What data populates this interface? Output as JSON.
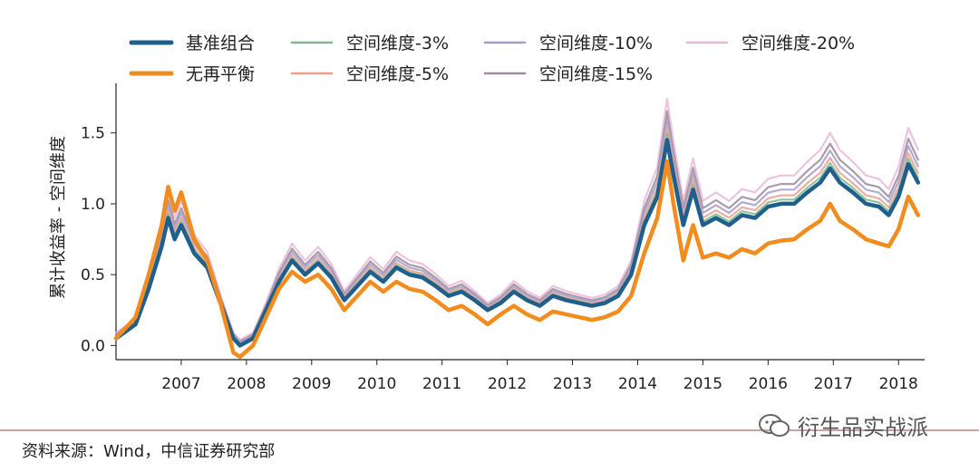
{
  "chart_data": {
    "type": "line",
    "title": "",
    "xlabel": "",
    "ylabel": "累计收益率 - 空间维度",
    "ylim": [
      -0.1,
      1.85
    ],
    "xlim": [
      2006.0,
      2018.4
    ],
    "x_ticks": [
      "2007",
      "2008",
      "2009",
      "2010",
      "2011",
      "2012",
      "2013",
      "2014",
      "2015",
      "2016",
      "2017",
      "2018"
    ],
    "y_ticks": [
      "0.0",
      "0.5",
      "1.0",
      "1.5"
    ],
    "grid": false,
    "legend_position": "top",
    "series": [
      {
        "name": "基准组合",
        "color": "#1f5f8b",
        "points": [
          [
            2006.0,
            0.05
          ],
          [
            2006.3,
            0.15
          ],
          [
            2006.5,
            0.4
          ],
          [
            2006.7,
            0.7
          ],
          [
            2006.8,
            0.9
          ],
          [
            2006.9,
            0.75
          ],
          [
            2007.0,
            0.85
          ],
          [
            2007.2,
            0.65
          ],
          [
            2007.4,
            0.55
          ],
          [
            2007.6,
            0.3
          ],
          [
            2007.8,
            0.05
          ],
          [
            2007.9,
            0.0
          ],
          [
            2008.1,
            0.05
          ],
          [
            2008.3,
            0.25
          ],
          [
            2008.5,
            0.45
          ],
          [
            2008.7,
            0.6
          ],
          [
            2008.9,
            0.5
          ],
          [
            2009.1,
            0.58
          ],
          [
            2009.3,
            0.48
          ],
          [
            2009.5,
            0.32
          ],
          [
            2009.7,
            0.42
          ],
          [
            2009.9,
            0.52
          ],
          [
            2010.1,
            0.45
          ],
          [
            2010.3,
            0.55
          ],
          [
            2010.5,
            0.5
          ],
          [
            2010.7,
            0.48
          ],
          [
            2010.9,
            0.42
          ],
          [
            2011.1,
            0.35
          ],
          [
            2011.3,
            0.38
          ],
          [
            2011.5,
            0.32
          ],
          [
            2011.7,
            0.25
          ],
          [
            2011.9,
            0.3
          ],
          [
            2012.1,
            0.38
          ],
          [
            2012.3,
            0.32
          ],
          [
            2012.5,
            0.28
          ],
          [
            2012.7,
            0.35
          ],
          [
            2012.9,
            0.32
          ],
          [
            2013.1,
            0.3
          ],
          [
            2013.3,
            0.28
          ],
          [
            2013.5,
            0.3
          ],
          [
            2013.7,
            0.35
          ],
          [
            2013.9,
            0.5
          ],
          [
            2014.1,
            0.85
          ],
          [
            2014.3,
            1.05
          ],
          [
            2014.45,
            1.45
          ],
          [
            2014.55,
            1.2
          ],
          [
            2014.7,
            0.85
          ],
          [
            2014.85,
            1.1
          ],
          [
            2015.0,
            0.85
          ],
          [
            2015.2,
            0.9
          ],
          [
            2015.4,
            0.85
          ],
          [
            2015.6,
            0.92
          ],
          [
            2015.8,
            0.9
          ],
          [
            2016.0,
            0.98
          ],
          [
            2016.2,
            1.0
          ],
          [
            2016.4,
            1.0
          ],
          [
            2016.6,
            1.08
          ],
          [
            2016.8,
            1.15
          ],
          [
            2016.95,
            1.25
          ],
          [
            2017.1,
            1.15
          ],
          [
            2017.3,
            1.08
          ],
          [
            2017.5,
            1.0
          ],
          [
            2017.7,
            0.98
          ],
          [
            2017.85,
            0.92
          ],
          [
            2018.0,
            1.05
          ],
          [
            2018.15,
            1.28
          ],
          [
            2018.3,
            1.15
          ]
        ]
      },
      {
        "name": "无再平衡",
        "color": "#f28c1e",
        "points": [
          [
            2006.0,
            0.05
          ],
          [
            2006.3,
            0.2
          ],
          [
            2006.5,
            0.5
          ],
          [
            2006.7,
            0.85
          ],
          [
            2006.8,
            1.12
          ],
          [
            2006.9,
            0.95
          ],
          [
            2007.0,
            1.08
          ],
          [
            2007.2,
            0.75
          ],
          [
            2007.4,
            0.6
          ],
          [
            2007.6,
            0.3
          ],
          [
            2007.8,
            -0.05
          ],
          [
            2007.9,
            -0.08
          ],
          [
            2008.1,
            0.0
          ],
          [
            2008.3,
            0.2
          ],
          [
            2008.5,
            0.4
          ],
          [
            2008.7,
            0.52
          ],
          [
            2008.9,
            0.45
          ],
          [
            2009.1,
            0.5
          ],
          [
            2009.3,
            0.4
          ],
          [
            2009.5,
            0.25
          ],
          [
            2009.7,
            0.35
          ],
          [
            2009.9,
            0.45
          ],
          [
            2010.1,
            0.38
          ],
          [
            2010.3,
            0.45
          ],
          [
            2010.5,
            0.4
          ],
          [
            2010.7,
            0.38
          ],
          [
            2010.9,
            0.32
          ],
          [
            2011.1,
            0.25
          ],
          [
            2011.3,
            0.28
          ],
          [
            2011.5,
            0.22
          ],
          [
            2011.7,
            0.15
          ],
          [
            2011.9,
            0.22
          ],
          [
            2012.1,
            0.28
          ],
          [
            2012.3,
            0.22
          ],
          [
            2012.5,
            0.18
          ],
          [
            2012.7,
            0.24
          ],
          [
            2012.9,
            0.22
          ],
          [
            2013.1,
            0.2
          ],
          [
            2013.3,
            0.18
          ],
          [
            2013.5,
            0.2
          ],
          [
            2013.7,
            0.24
          ],
          [
            2013.9,
            0.35
          ],
          [
            2014.1,
            0.65
          ],
          [
            2014.3,
            0.9
          ],
          [
            2014.45,
            1.3
          ],
          [
            2014.55,
            1.0
          ],
          [
            2014.7,
            0.6
          ],
          [
            2014.85,
            0.85
          ],
          [
            2015.0,
            0.62
          ],
          [
            2015.2,
            0.65
          ],
          [
            2015.4,
            0.62
          ],
          [
            2015.6,
            0.68
          ],
          [
            2015.8,
            0.65
          ],
          [
            2016.0,
            0.72
          ],
          [
            2016.2,
            0.74
          ],
          [
            2016.4,
            0.75
          ],
          [
            2016.6,
            0.82
          ],
          [
            2016.8,
            0.88
          ],
          [
            2016.95,
            1.0
          ],
          [
            2017.1,
            0.88
          ],
          [
            2017.3,
            0.82
          ],
          [
            2017.5,
            0.75
          ],
          [
            2017.7,
            0.72
          ],
          [
            2017.85,
            0.7
          ],
          [
            2018.0,
            0.82
          ],
          [
            2018.15,
            1.05
          ],
          [
            2018.3,
            0.92
          ]
        ]
      },
      {
        "name": "空间维度-3%",
        "color": "#7fb98a",
        "offset": 0.03
      },
      {
        "name": "空间维度-5%",
        "color": "#e8a08f",
        "offset": 0.06
      },
      {
        "name": "空间维度-10%",
        "color": "#a59ec8",
        "offset": 0.1
      },
      {
        "name": "空间维度-15%",
        "color": "#9a8a9a",
        "offset": 0.14
      },
      {
        "name": "空间维度-20%",
        "color": "#eab8d8",
        "offset": 0.2
      }
    ]
  },
  "footer": {
    "source": "资料来源：Wind，中信证券研究部",
    "watermark": "衍生品实战派"
  }
}
